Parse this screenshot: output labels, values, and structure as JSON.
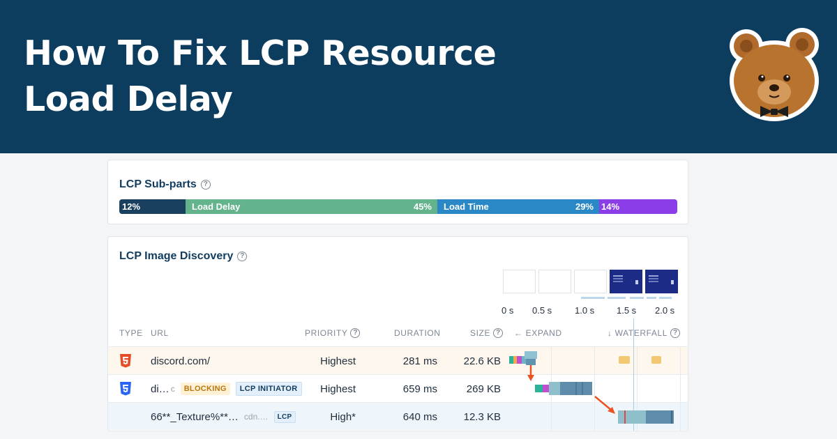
{
  "banner": {
    "title": "How To Fix LCP Resource Load Delay"
  },
  "subparts_card": {
    "title": "LCP Sub-parts",
    "segments": [
      {
        "label": "",
        "percent": "12%",
        "value": 12,
        "color": "#1a4060"
      },
      {
        "label": "Load Delay",
        "percent": "45%",
        "value": 45,
        "color": "#63b38d"
      },
      {
        "label": "Load Time",
        "percent": "29%",
        "value": 29,
        "color": "#2a88c6"
      },
      {
        "label": "",
        "percent": "14%",
        "value": 14,
        "color": "#8b3ee8"
      }
    ]
  },
  "discovery_card": {
    "title": "LCP Image Discovery",
    "timeline_ticks": [
      "0 s",
      "0.5 s",
      "1.0 s",
      "1.5 s",
      "2.0 s"
    ],
    "columns": {
      "type": "TYPE",
      "url": "URL",
      "priority": "PRIORITY",
      "duration": "DURATION",
      "size": "SIZE",
      "expand": "EXPAND",
      "waterfall": "WATERFALL"
    },
    "rows": [
      {
        "type_icon": "html5-icon",
        "url": "discord.com/",
        "url_suffix": "",
        "badges": [],
        "priority": "Highest",
        "duration": "281 ms",
        "size": "22.6 KB"
      },
      {
        "type_icon": "css3-icon",
        "url": "di…",
        "url_suffix": "c",
        "badges": [
          "BLOCKING",
          "LCP INITIATOR"
        ],
        "priority": "Highest",
        "duration": "659 ms",
        "size": "269 KB"
      },
      {
        "type_icon": "",
        "url": "66**_Texture%**…",
        "url_suffix": "cdn.…",
        "badges": [
          "LCP"
        ],
        "priority": "High*",
        "duration": "640 ms",
        "size": "12.3 KB"
      }
    ]
  }
}
